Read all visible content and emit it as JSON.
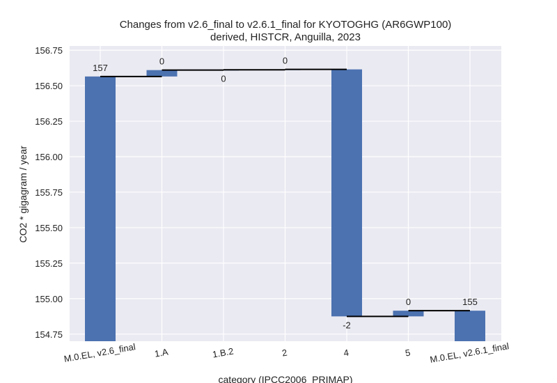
{
  "chart_data": {
    "type": "bar",
    "subtype": "waterfall",
    "title": "Changes from v2.6_final to v2.6.1_final for KYOTOGHG (AR6GWP100)",
    "subtitle": "derived, HISTCR, Anguilla, 2023",
    "xlabel": "category (IPCC2006_PRIMAP)",
    "ylabel": "CO2 * gigagram / year",
    "ylim": [
      154.7,
      156.78
    ],
    "yticks": [
      "156.75",
      "156.50",
      "156.25",
      "156.00",
      "155.75",
      "155.50",
      "155.25",
      "155.00",
      "154.75"
    ],
    "ytick_values": [
      156.75,
      156.5,
      156.25,
      156.0,
      155.75,
      155.5,
      155.25,
      155.0,
      154.75
    ],
    "categories": [
      "M.0.EL, v2.6_final",
      "1.A",
      "1.B.2",
      "2",
      "4",
      "5",
      "M.0.EL, v2.6.1_final"
    ],
    "bars": [
      {
        "category": "M.0.EL, v2.6_final",
        "bottom": 154.7,
        "top": 156.565,
        "label": "157"
      },
      {
        "category": "1.A",
        "bottom": 156.565,
        "top": 156.61,
        "label": "0"
      },
      {
        "category": "1.B.2",
        "bottom": 156.61,
        "top": 156.612,
        "label": "0"
      },
      {
        "category": "2",
        "bottom": 156.612,
        "top": 156.615,
        "label": "0"
      },
      {
        "category": "4",
        "bottom": 154.875,
        "top": 156.615,
        "label": "-2"
      },
      {
        "category": "5",
        "bottom": 154.875,
        "top": 154.915,
        "label": "0"
      },
      {
        "category": "M.0.EL, v2.6.1_final",
        "bottom": 154.7,
        "top": 154.915,
        "label": "155"
      }
    ],
    "connectors": [
      156.565,
      156.61,
      156.612,
      156.615,
      154.875,
      154.915
    ],
    "grid": true,
    "colors": {
      "bar": "#4c72b0",
      "plot_background": "#eaeaf2",
      "grid": "#ffffff",
      "connector": "#000000"
    }
  }
}
